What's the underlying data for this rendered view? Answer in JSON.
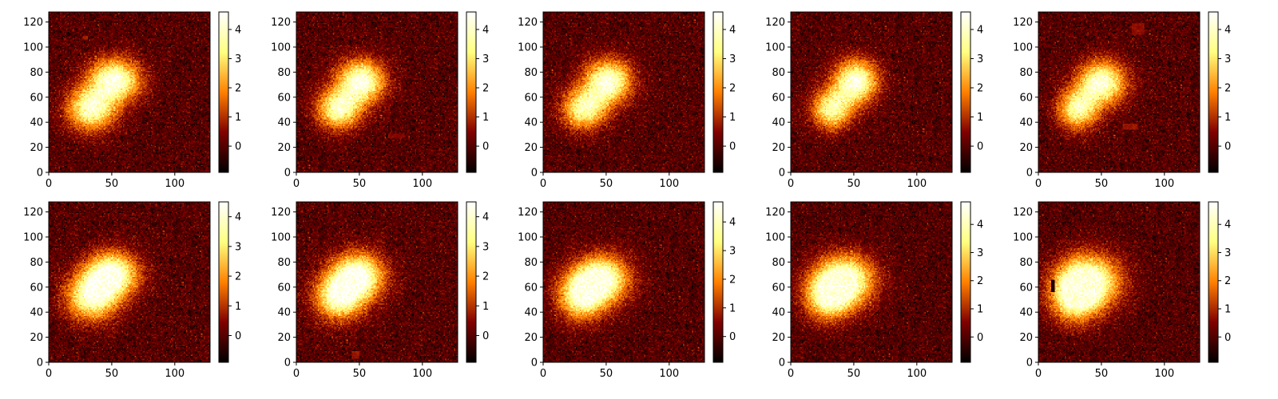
{
  "chart_data": {
    "type": "heatmap",
    "colormap": "afmhot",
    "layout": "2 rows x 5 columns grid of heatmap panels, each with its own colorbar",
    "x_ticks": [
      0,
      50,
      100
    ],
    "y_ticks": [
      0,
      20,
      40,
      60,
      80,
      100,
      120
    ],
    "xlim": [
      0,
      128
    ],
    "ylim": [
      0,
      128
    ],
    "grid": false,
    "panels": [
      {
        "row": 0,
        "col": 0,
        "vlim": [
          -0.9,
          4.6
        ],
        "colorbar_ticks": [
          0,
          1,
          2,
          3,
          4
        ],
        "blobs": [
          {
            "cx": 52,
            "cy": 73,
            "sx": 14,
            "sy": 12,
            "amp": 4.3
          },
          {
            "cx": 33,
            "cy": 50,
            "sx": 13,
            "sy": 12,
            "amp": 3.9
          }
        ],
        "artifacts": [
          {
            "x": 27,
            "y": 106,
            "w": 4,
            "h": 3,
            "value": 0.8
          }
        ]
      },
      {
        "row": 0,
        "col": 1,
        "vlim": [
          -0.9,
          4.6
        ],
        "colorbar_ticks": [
          0,
          1,
          2,
          3,
          4
        ],
        "blobs": [
          {
            "cx": 51,
            "cy": 72,
            "sx": 13,
            "sy": 12,
            "amp": 4.3
          },
          {
            "cx": 33,
            "cy": 50,
            "sx": 12,
            "sy": 11,
            "amp": 3.8
          }
        ],
        "artifacts": [
          {
            "x": 73,
            "y": 27,
            "w": 13,
            "h": 4,
            "value": 0.5
          },
          {
            "x": 70,
            "y": 33,
            "w": 2,
            "h": 2,
            "value": 0.1
          }
        ]
      },
      {
        "row": 0,
        "col": 2,
        "vlim": [
          -0.9,
          4.6
        ],
        "colorbar_ticks": [
          0,
          1,
          2,
          3,
          4
        ],
        "blobs": [
          {
            "cx": 51,
            "cy": 72,
            "sx": 13,
            "sy": 12,
            "amp": 4.3
          },
          {
            "cx": 32,
            "cy": 50,
            "sx": 12,
            "sy": 11,
            "amp": 3.7
          }
        ],
        "artifacts": []
      },
      {
        "row": 0,
        "col": 3,
        "vlim": [
          -0.9,
          4.6
        ],
        "colorbar_ticks": [
          0,
          1,
          2,
          3,
          4
        ],
        "blobs": [
          {
            "cx": 51,
            "cy": 72,
            "sx": 12,
            "sy": 12,
            "amp": 4.3
          },
          {
            "cx": 32,
            "cy": 50,
            "sx": 11,
            "sy": 11,
            "amp": 3.6
          }
        ],
        "artifacts": []
      },
      {
        "row": 0,
        "col": 4,
        "vlim": [
          -0.9,
          4.6
        ],
        "colorbar_ticks": [
          0,
          1,
          2,
          3,
          4
        ],
        "blobs": [
          {
            "cx": 50,
            "cy": 71,
            "sx": 13,
            "sy": 12,
            "amp": 4.2
          },
          {
            "cx": 31,
            "cy": 50,
            "sx": 11,
            "sy": 11,
            "amp": 3.6
          }
        ],
        "artifacts": [
          {
            "x": 74,
            "y": 110,
            "w": 10,
            "h": 9,
            "value": 0.6
          },
          {
            "x": 67,
            "y": 34,
            "w": 12,
            "h": 5,
            "value": 0.7
          }
        ]
      },
      {
        "row": 1,
        "col": 0,
        "vlim": [
          -0.9,
          4.5
        ],
        "colorbar_ticks": [
          0,
          1,
          2,
          3,
          4
        ],
        "blobs": [
          {
            "cx": 50,
            "cy": 70,
            "sx": 14,
            "sy": 12,
            "amp": 4.3
          },
          {
            "cx": 34,
            "cy": 52,
            "sx": 14,
            "sy": 13,
            "amp": 4.0
          }
        ],
        "artifacts": []
      },
      {
        "row": 1,
        "col": 1,
        "vlim": [
          -0.9,
          4.5
        ],
        "colorbar_ticks": [
          0,
          1,
          2,
          3,
          4
        ],
        "blobs": [
          {
            "cx": 49,
            "cy": 68,
            "sx": 14,
            "sy": 13,
            "amp": 4.3
          },
          {
            "cx": 33,
            "cy": 52,
            "sx": 13,
            "sy": 13,
            "amp": 3.8
          }
        ],
        "artifacts": [
          {
            "x": 44,
            "y": 3,
            "w": 6,
            "h": 6,
            "value": 0.7
          }
        ]
      },
      {
        "row": 1,
        "col": 2,
        "vlim": [
          -0.9,
          4.7
        ],
        "colorbar_ticks": [
          0,
          1,
          2,
          3,
          4
        ],
        "blobs": [
          {
            "cx": 46,
            "cy": 66,
            "sx": 15,
            "sy": 13,
            "amp": 4.4
          },
          {
            "cx": 30,
            "cy": 52,
            "sx": 13,
            "sy": 13,
            "amp": 3.8
          }
        ],
        "artifacts": []
      },
      {
        "row": 1,
        "col": 3,
        "vlim": [
          -0.9,
          4.8
        ],
        "colorbar_ticks": [
          0,
          1,
          2,
          3,
          4
        ],
        "blobs": [
          {
            "cx": 43,
            "cy": 65,
            "sx": 16,
            "sy": 14,
            "amp": 4.4
          },
          {
            "cx": 29,
            "cy": 52,
            "sx": 13,
            "sy": 13,
            "amp": 3.6
          }
        ],
        "artifacts": []
      },
      {
        "row": 1,
        "col": 4,
        "vlim": [
          -0.9,
          4.8
        ],
        "colorbar_ticks": [
          0,
          1,
          2,
          3,
          4
        ],
        "blobs": [
          {
            "cx": 40,
            "cy": 64,
            "sx": 17,
            "sy": 15,
            "amp": 4.4
          },
          {
            "cx": 28,
            "cy": 52,
            "sx": 13,
            "sy": 14,
            "amp": 3.5
          }
        ],
        "artifacts": [
          {
            "x": 10,
            "y": 56,
            "w": 3,
            "h": 10,
            "value": -0.5
          }
        ]
      }
    ]
  }
}
